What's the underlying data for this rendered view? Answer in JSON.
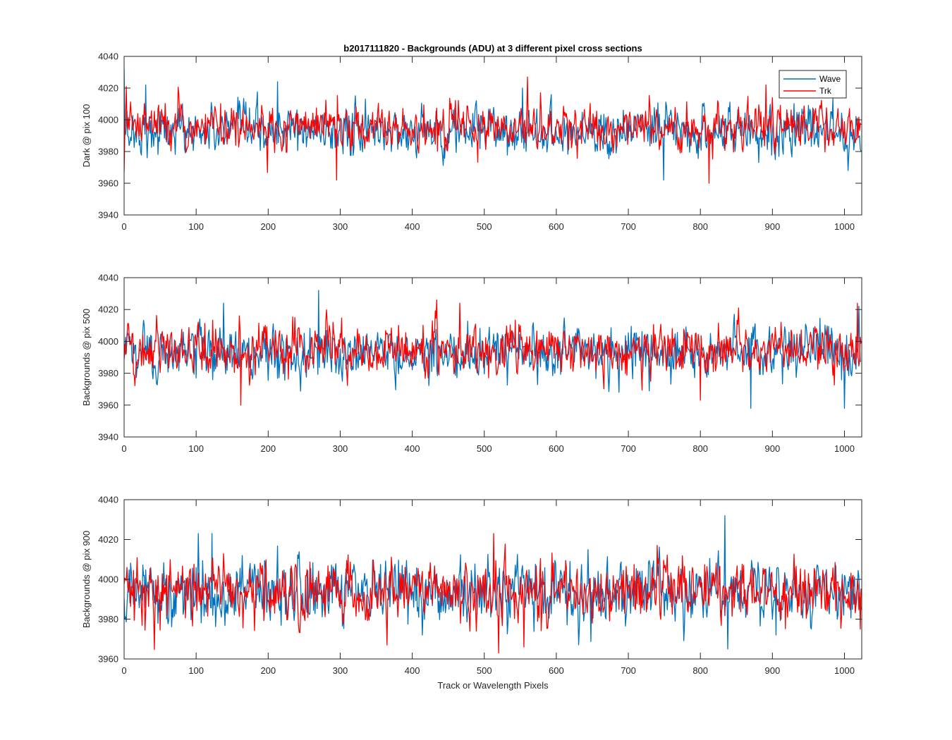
{
  "chart_data": {
    "type": "line",
    "title": "b2017111820 - Backgrounds (ADU) at 3 different pixel cross sections",
    "xlabel": "Track or Wavelength Pixels",
    "xlim": [
      0,
      1024
    ],
    "xticks": [
      0,
      100,
      200,
      300,
      400,
      500,
      600,
      700,
      800,
      900,
      1000
    ],
    "legend": {
      "location": "top-right",
      "entries": [
        "Wave",
        "Trk"
      ]
    },
    "colors": {
      "Wave": "#0072BD",
      "Trk": "#FF0000"
    },
    "panels": [
      {
        "ylabel": "Dark @ pix 100",
        "ylim": [
          3940,
          4040
        ],
        "yticks": [
          3940,
          3960,
          3980,
          4000,
          4020,
          4040
        ],
        "series": [
          {
            "name": "Wave",
            "noise": {
              "points": 1024,
              "mean": 3993,
              "sd": 7,
              "min": 3962,
              "max": 4032
            },
            "peaks": [
              [
                0,
                4032
              ],
              [
                30,
                4022
              ],
              [
                213,
                4024
              ],
              [
                553,
                4020
              ],
              [
                749,
                3962
              ],
              [
                1005,
                3968
              ]
            ]
          },
          {
            "name": "Trk",
            "noise": {
              "points": 1024,
              "mean": 3995,
              "sd": 6.5,
              "min": 3960,
              "max": 4027
            },
            "peaks": [
              [
                0,
                3967
              ],
              [
                3,
                4021
              ],
              [
                295,
                3962
              ],
              [
                560,
                4027
              ],
              [
                812,
                3960
              ],
              [
                891,
                4022
              ]
            ]
          }
        ]
      },
      {
        "ylabel": "Backgrounds @ pix 500",
        "ylim": [
          3940,
          4040
        ],
        "yticks": [
          3940,
          3960,
          3980,
          4000,
          4020,
          4040
        ],
        "series": [
          {
            "name": "Wave",
            "noise": {
              "points": 1024,
              "mean": 3993,
              "sd": 7.5,
              "min": 3958,
              "max": 4032
            },
            "peaks": [
              [
                270,
                4032
              ],
              [
                138,
                4024
              ],
              [
                870,
                3958
              ],
              [
                1000,
                3958
              ],
              [
                1020,
                4022
              ]
            ]
          },
          {
            "name": "Trk",
            "noise": {
              "points": 1024,
              "mean": 3995,
              "sd": 7,
              "min": 3960,
              "max": 4026
            },
            "peaks": [
              [
                162,
                3960
              ],
              [
                434,
                4026
              ],
              [
                466,
                4024
              ],
              [
                800,
                3963
              ],
              [
                1018,
                4024
              ]
            ]
          }
        ]
      },
      {
        "ylabel": "Backgrounds @ pix 900",
        "ylim": [
          3960,
          4040
        ],
        "yticks": [
          3960,
          3980,
          4000,
          4020,
          4040
        ],
        "series": [
          {
            "name": "Wave",
            "noise": {
              "points": 1024,
              "mean": 3993,
              "sd": 7.5,
              "min": 3965,
              "max": 4032
            },
            "peaks": [
              [
                103,
                4023
              ],
              [
                122,
                4023
              ],
              [
                834,
                4032
              ],
              [
                838,
                3965
              ],
              [
                905,
                3972
              ]
            ]
          },
          {
            "name": "Trk",
            "noise": {
              "points": 1024,
              "mean": 3994,
              "sd": 7,
              "min": 3963,
              "max": 4023
            },
            "peaks": [
              [
                513,
                4023
              ],
              [
                520,
                3963
              ],
              [
                365,
                3967
              ],
              [
                555,
                3966
              ],
              [
                1022,
                3975
              ]
            ]
          }
        ]
      }
    ]
  }
}
